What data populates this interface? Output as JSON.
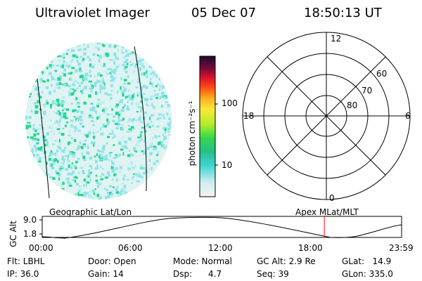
{
  "header": {
    "title": "Ultraviolet Imager",
    "date": "05 Dec 07",
    "time": "18:50:13 UT"
  },
  "colors": {
    "image_cyan": "#8ee3e6",
    "image_green": "#20d890",
    "image_pale": "#dff3f3",
    "grid": "#000000",
    "time_marker": "#ff0000"
  },
  "colorbar": {
    "label": "photon cm⁻²s⁻¹",
    "ticks": [
      "100",
      "10"
    ]
  },
  "polar_plot": {
    "mlt_labels": {
      "top": "12",
      "bottom": "0",
      "left": "18",
      "right": "6"
    },
    "lat_labels": [
      "60",
      "70",
      "80"
    ]
  },
  "geo_label": "Geographic Lat/Lon",
  "apex_label": "Apex MLat/MLT",
  "altitude_panel": {
    "ylabel": "GC Alt",
    "y_ticks": [
      "9.0",
      "1.8"
    ],
    "x_ticks": [
      "00:00",
      "06:00",
      "12:00",
      "18:00",
      "23:59"
    ],
    "current_time_fraction": 0.785
  },
  "info": {
    "flt": "Flt: LBHL",
    "ip": "IP: 36.0",
    "door": "Door: Open",
    "gain": "Gain: 14",
    "mode": "Mode: Normal",
    "dsp": "Dsp:      4.7",
    "gc_alt": "GC Alt: 2.9 Re",
    "seq": "Seq: 39",
    "glat": "GLat:   14.9",
    "glon": "GLon: 335.0"
  }
}
